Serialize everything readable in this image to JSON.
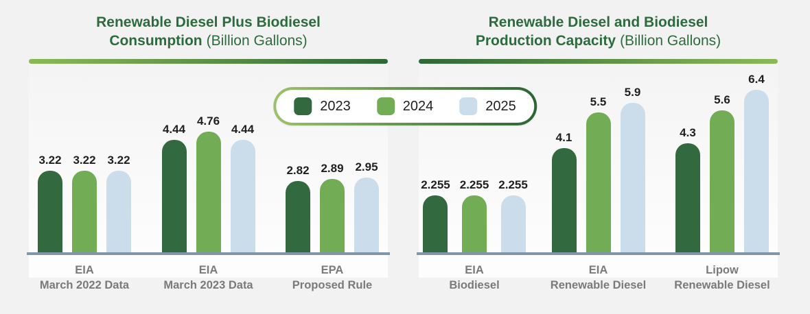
{
  "colors": {
    "background": "#F2F2F3",
    "panel_gradient_top": "#F4F4F5",
    "panel_gradient_bottom": "#FDFDFD",
    "title_green": "#2D6B3C",
    "underline_light_green": "#8CB956",
    "underline_dark_green": "#2E6837",
    "axis_baseline": "#7E97AA",
    "value_label": "#1F1F1F",
    "category_label": "#7A7A7A",
    "legend_background": "#FFFFFF"
  },
  "legend": {
    "items": [
      {
        "label": "2023",
        "color": "#33693E"
      },
      {
        "label": "2024",
        "color": "#72AC55"
      },
      {
        "label": "2025",
        "color": "#CBDDEA"
      }
    ]
  },
  "chart_data": [
    {
      "type": "bar",
      "title_line1": "Renewable Diesel Plus Biodiesel",
      "title_line2_bold": "Consumption",
      "title_line2_regular": "(Billion Gallons)",
      "ylabel": "Billion Gallons",
      "ylim": [
        0,
        5.5
      ],
      "grid": false,
      "value_labels": true,
      "legend_position": "top-center-shared",
      "categories": [
        {
          "line1": "EIA",
          "line2": "March 2022 Data"
        },
        {
          "line1": "EIA",
          "line2": "March 2023 Data"
        },
        {
          "line1": "EPA",
          "line2": "Proposed Rule"
        }
      ],
      "series": [
        {
          "name": "2023",
          "color": "#33693E",
          "values": [
            3.22,
            4.44,
            2.82
          ]
        },
        {
          "name": "2024",
          "color": "#72AC55",
          "values": [
            3.22,
            4.76,
            2.89
          ]
        },
        {
          "name": "2025",
          "color": "#CBDDEA",
          "values": [
            3.22,
            4.44,
            2.95
          ]
        }
      ]
    },
    {
      "type": "bar",
      "title_line1": "Renewable Diesel and Biodiesel",
      "title_line2_bold": "Production Capacity",
      "title_line2_regular": "(Billion Gallons)",
      "ylabel": "Billion Gallons",
      "ylim": [
        0,
        7
      ],
      "grid": false,
      "value_labels": true,
      "legend_position": "top-center-shared",
      "categories": [
        {
          "line1": "EIA",
          "line2": "Biodiesel"
        },
        {
          "line1": "EIA",
          "line2": "Renewable Diesel"
        },
        {
          "line1": "Lipow",
          "line2": "Renewable Diesel"
        }
      ],
      "series": [
        {
          "name": "2023",
          "color": "#33693E",
          "values": [
            2.255,
            4.1,
            4.3
          ]
        },
        {
          "name": "2024",
          "color": "#72AC55",
          "values": [
            2.255,
            5.5,
            5.6
          ]
        },
        {
          "name": "2025",
          "color": "#CBDDEA",
          "values": [
            2.255,
            5.9,
            6.4
          ]
        }
      ]
    }
  ]
}
